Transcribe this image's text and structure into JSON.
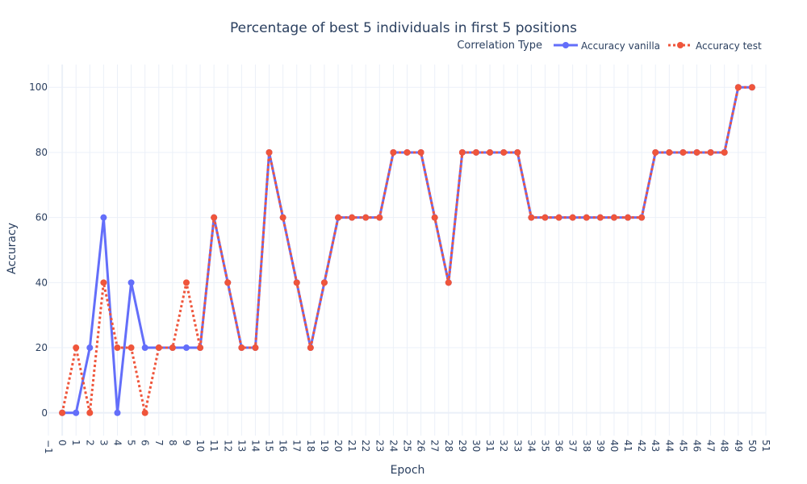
{
  "chart_data": {
    "type": "line",
    "title": "Percentage of best 5 individuals in first 5 positions",
    "xlabel": "Epoch",
    "ylabel": "Accuracy",
    "legend_title": "Correlation Type",
    "legend_position": "top-right",
    "xlim": [
      -1,
      51
    ],
    "ylim": [
      -7,
      107
    ],
    "x_ticks": [
      -1,
      0,
      1,
      2,
      3,
      4,
      5,
      6,
      7,
      8,
      9,
      10,
      11,
      12,
      13,
      14,
      15,
      16,
      17,
      18,
      19,
      20,
      21,
      22,
      23,
      24,
      25,
      26,
      27,
      28,
      29,
      30,
      31,
      32,
      33,
      34,
      35,
      36,
      37,
      38,
      39,
      40,
      41,
      42,
      43,
      44,
      45,
      46,
      47,
      48,
      49,
      50,
      51
    ],
    "y_ticks": [
      0,
      20,
      40,
      60,
      80,
      100
    ],
    "grid": true,
    "x": [
      0,
      1,
      2,
      3,
      4,
      5,
      6,
      7,
      8,
      9,
      10,
      11,
      12,
      13,
      14,
      15,
      16,
      17,
      18,
      19,
      20,
      21,
      22,
      23,
      24,
      25,
      26,
      27,
      28,
      29,
      30,
      31,
      32,
      33,
      34,
      35,
      36,
      37,
      38,
      39,
      40,
      41,
      42,
      43,
      44,
      45,
      46,
      47,
      48,
      49,
      50
    ],
    "series": [
      {
        "name": "Accuracy vanilla",
        "color": "#636efa",
        "dash": "solid",
        "values": [
          0,
          0,
          20,
          60,
          0,
          40,
          20,
          20,
          20,
          20,
          20,
          60,
          40,
          20,
          20,
          80,
          60,
          40,
          20,
          40,
          60,
          60,
          60,
          60,
          80,
          80,
          80,
          60,
          40,
          80,
          80,
          80,
          80,
          80,
          60,
          60,
          60,
          60,
          60,
          60,
          60,
          60,
          60,
          80,
          80,
          80,
          80,
          80,
          80,
          100,
          100
        ]
      },
      {
        "name": "Accuracy test",
        "color": "#ef553b",
        "dash": "dot",
        "values": [
          0,
          20,
          0,
          40,
          20,
          20,
          0,
          20,
          20,
          40,
          20,
          60,
          40,
          20,
          20,
          80,
          60,
          40,
          20,
          40,
          60,
          60,
          60,
          60,
          80,
          80,
          80,
          60,
          40,
          80,
          80,
          80,
          80,
          80,
          60,
          60,
          60,
          60,
          60,
          60,
          60,
          60,
          60,
          80,
          80,
          80,
          80,
          80,
          80,
          100,
          100
        ]
      }
    ]
  }
}
